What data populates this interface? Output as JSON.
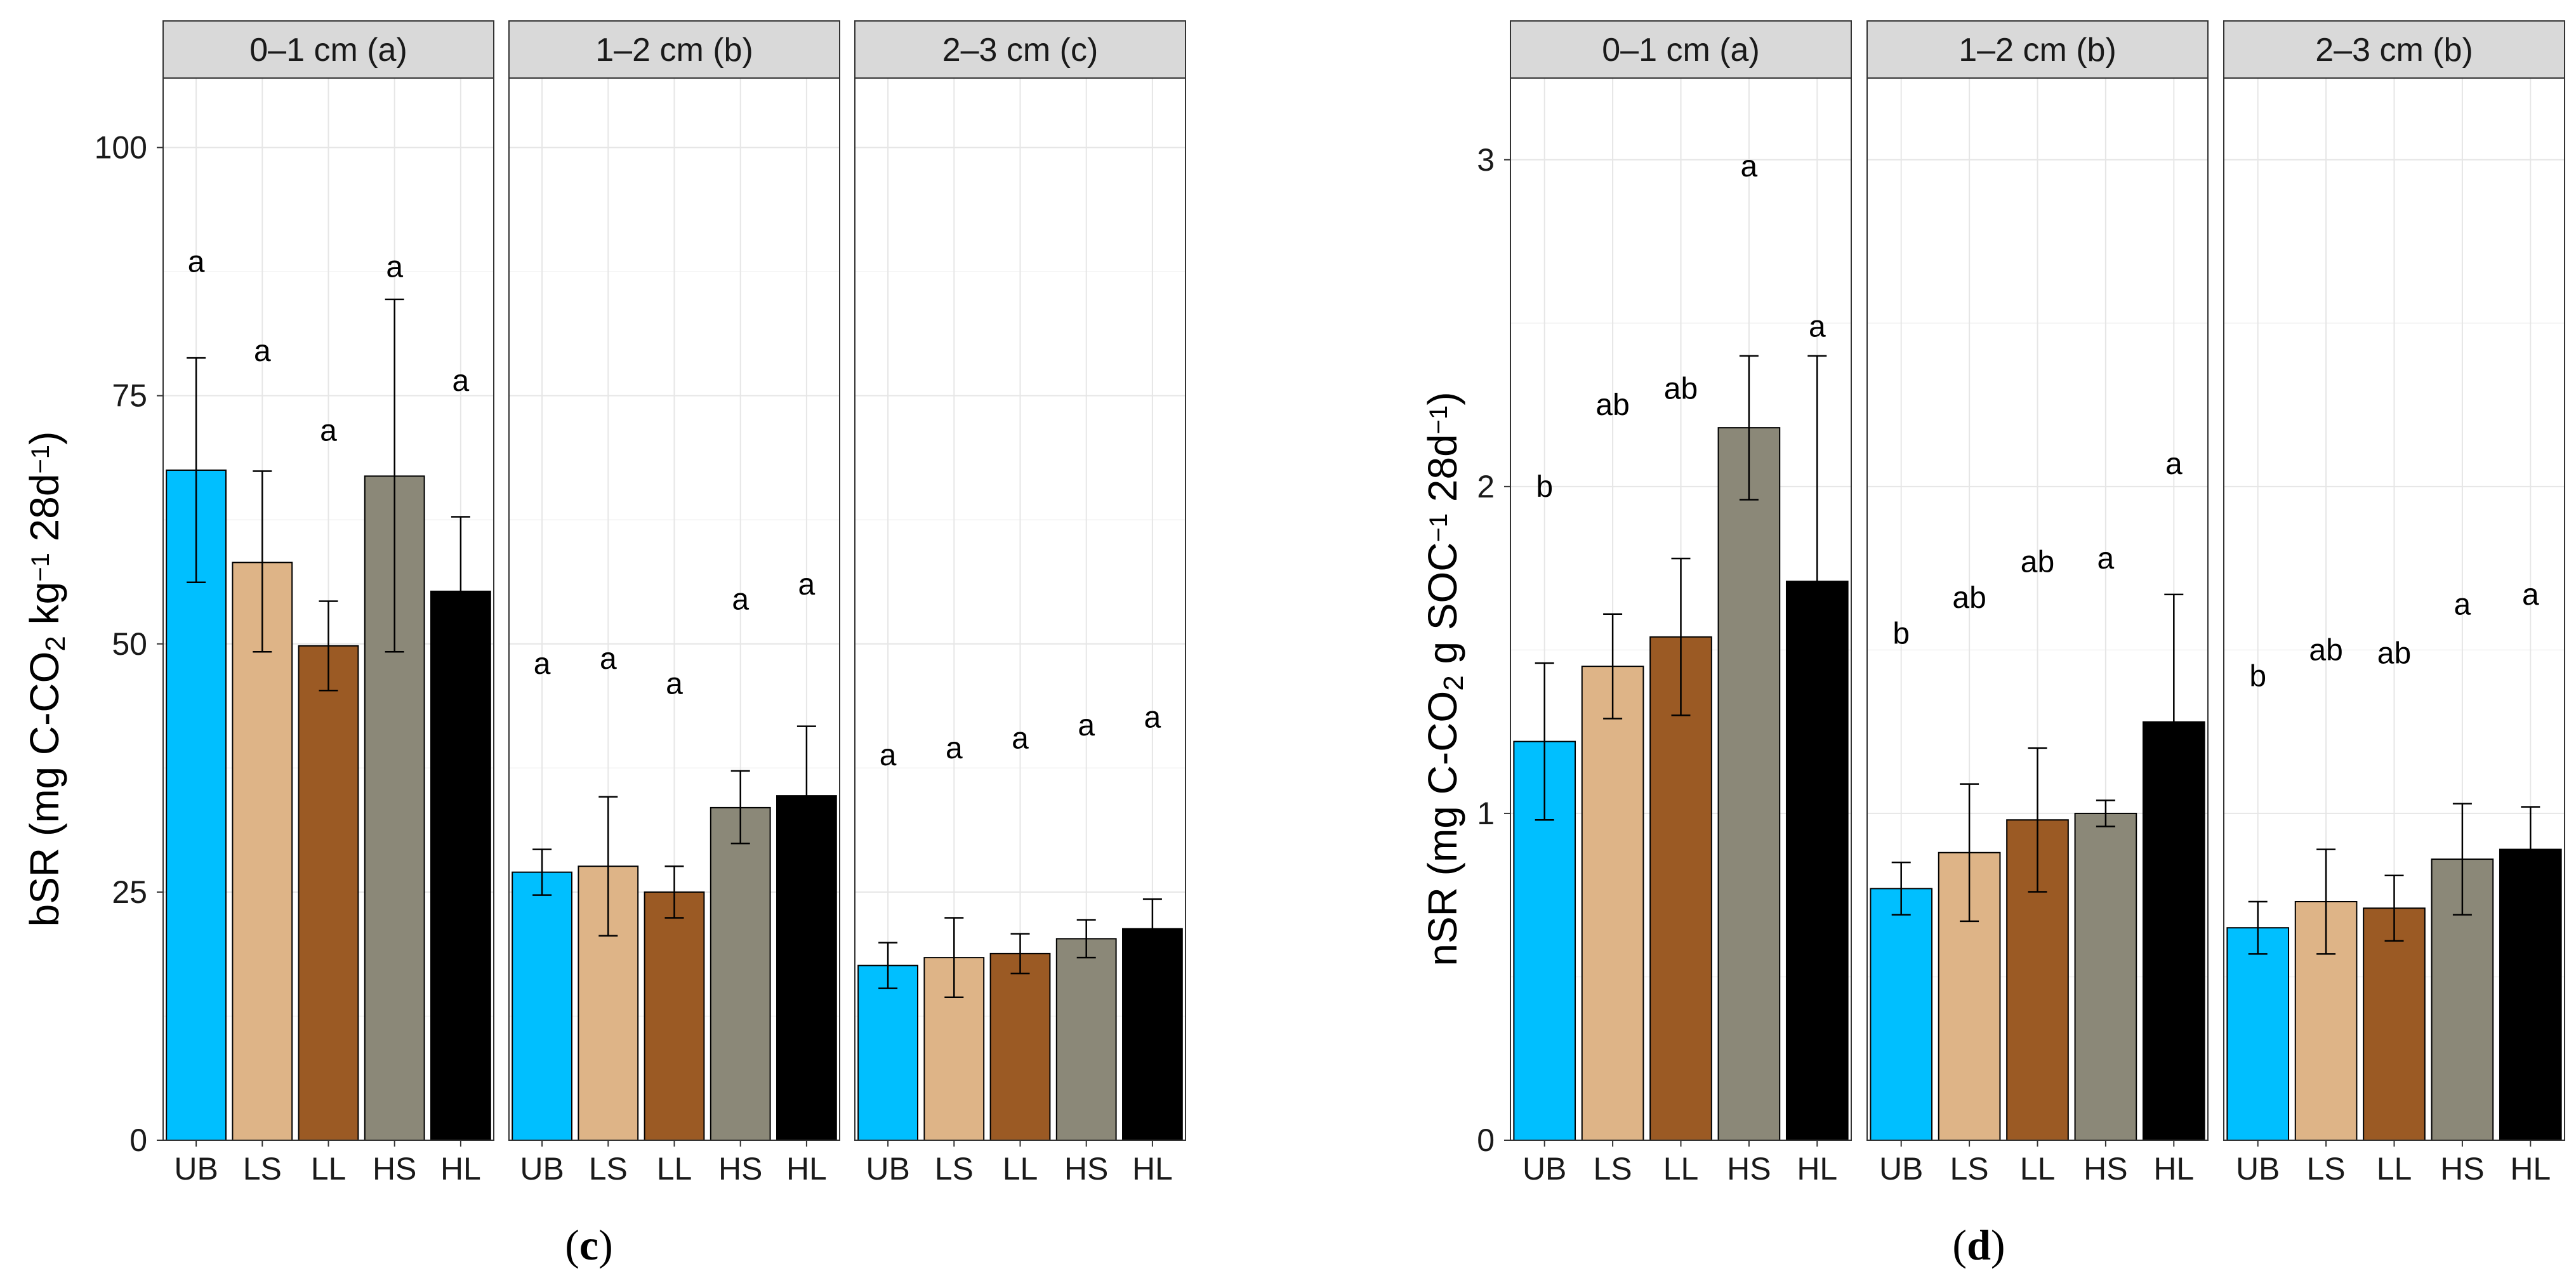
{
  "colors": {
    "UB": "#00bfff",
    "LS": "#deb487",
    "LL": "#9b5a24",
    "HS": "#8b8878",
    "HL": "#000000",
    "strip_bg": "#d9d9d9",
    "grid_major": "#e6e6e6",
    "grid_minor": "#f2f2f2"
  },
  "chart_data": [
    {
      "type": "bar",
      "panel": "c",
      "caption": {
        "open": "(",
        "letter": "c",
        "close": ")"
      },
      "ylabel": {
        "pre": "bSR (mg C-CO",
        "sub": "2",
        "mid": " kg",
        "sup": "−1",
        "post": " 28d",
        "sup2": "−1",
        "end": ")"
      },
      "ylim": [
        0,
        107
      ],
      "yticks": [
        0,
        25,
        50,
        75,
        100
      ],
      "categories": [
        "UB",
        "LS",
        "LL",
        "HS",
        "HL"
      ],
      "facets": [
        {
          "label": "0–1 cm (a)",
          "values": [
            67.5,
            58.2,
            49.8,
            66.9,
            55.3
          ],
          "err_low": [
            56.2,
            49.2,
            45.3,
            49.2,
            47.9
          ],
          "err_high": [
            78.8,
            67.4,
            54.3,
            84.7,
            62.8
          ],
          "letters": [
            "a",
            "a",
            "a",
            "a",
            "a"
          ],
          "letter_y": [
            88.5,
            79.5,
            71.5,
            88,
            76.5
          ]
        },
        {
          "label": "1–2 cm (b)",
          "values": [
            27.0,
            27.6,
            25.0,
            33.5,
            34.7
          ],
          "err_low": [
            24.7,
            20.6,
            22.4,
            29.9,
            27.7
          ],
          "err_high": [
            29.3,
            34.6,
            27.6,
            37.2,
            41.7
          ],
          "letters": [
            "a",
            "a",
            "a",
            "a",
            "a"
          ],
          "letter_y": [
            48,
            48.5,
            46,
            54.5,
            56
          ],
          "_": ""
        },
        {
          "label": "2–3 cm (c)",
          "values": [
            17.6,
            18.4,
            18.8,
            20.3,
            21.3
          ],
          "err_low": [
            15.3,
            14.4,
            16.8,
            18.4,
            18.3
          ],
          "err_high": [
            19.9,
            22.4,
            20.8,
            22.2,
            24.3
          ],
          "letters": [
            "a",
            "a",
            "a",
            "a",
            "a"
          ],
          "letter_y": [
            38.8,
            39.5,
            40.5,
            41.8,
            42.6
          ]
        }
      ]
    },
    {
      "type": "bar",
      "panel": "d",
      "caption": {
        "open": "(",
        "letter": "d",
        "close": ")"
      },
      "ylabel": {
        "pre": "nSR (mg C-CO",
        "sub": "2",
        "mid": " g SOC",
        "sup": "−1",
        "post": " 28d",
        "sup2": "−1",
        "end": ")"
      },
      "ylim": [
        0,
        3.25
      ],
      "yticks": [
        0,
        1,
        2,
        3
      ],
      "categories": [
        "UB",
        "LS",
        "LL",
        "HS",
        "HL"
      ],
      "facets": [
        {
          "label": "0–1 cm (a)",
          "values": [
            1.22,
            1.45,
            1.54,
            2.18,
            1.71
          ],
          "err_low": [
            0.98,
            1.29,
            1.3,
            1.96,
            1.02
          ],
          "err_high": [
            1.46,
            1.61,
            1.78,
            2.4,
            2.4
          ],
          "letters": [
            "b",
            "ab",
            "ab",
            "a",
            "a"
          ],
          "letter_y": [
            2.0,
            2.25,
            2.3,
            2.98,
            2.49
          ]
        },
        {
          "label": "1–2 cm (b)",
          "values": [
            0.77,
            0.88,
            0.98,
            1.0,
            1.28
          ],
          "err_low": [
            0.69,
            0.67,
            0.76,
            0.96,
            0.89
          ],
          "err_high": [
            0.85,
            1.09,
            1.2,
            1.04,
            1.67
          ],
          "letters": [
            "b",
            "ab",
            "ab",
            "a",
            "a"
          ],
          "letter_y": [
            1.55,
            1.66,
            1.77,
            1.78,
            2.07
          ]
        },
        {
          "label": "2–3 cm (b)",
          "values": [
            0.65,
            0.73,
            0.71,
            0.86,
            0.89
          ],
          "err_low": [
            0.57,
            0.57,
            0.61,
            0.69,
            0.75
          ],
          "err_high": [
            0.73,
            0.89,
            0.81,
            1.03,
            1.02
          ],
          "letters": [
            "b",
            "ab",
            "ab",
            "a",
            "a"
          ],
          "letter_y": [
            1.42,
            1.5,
            1.49,
            1.64,
            1.67
          ]
        }
      ]
    }
  ]
}
